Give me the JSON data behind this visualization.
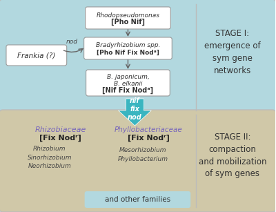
{
  "bg_top": "#b2d8df",
  "bg_bottom": "#d0c8a8",
  "bg_arrow": "#3ab5c0",
  "box_fill": "#ffffff",
  "box_edge": "#999999",
  "stage1_text": "STAGE I:\nemergence of\nsym gene\nnetworks",
  "stage2_text": "STAGE II:\ncompaction\nand mobilization\nof sym genes",
  "frankia_text": "Frankia (?)",
  "rhodops_l1": "Rhodopseudomonas",
  "rhodops_l2": "[Pho Nif]",
  "brady_l1": "Bradyrhizobium spp.",
  "brady_l2": "[Pho Nif Fix Nodᵃ]",
  "bjapon_l1": "B. japonicum,",
  "bjapon_l2": "B. elkanii",
  "bjapon_l3": "[Nif Fix Nodᵃ]",
  "arrow_label": "nif\nfix\nnod",
  "nod_arrow_label": "nod",
  "rhizo_title": "Rhizobiaceae",
  "rhizo_sub": "[Fix Nodʳ]",
  "rhizo_genera": "Rhizobium\nSinorhizobium\nNeorhizobium",
  "phyllo_title": "Phyllobacteriaceae",
  "phyllo_sub": "[Fix Nodʳ]",
  "phyllo_genera": "Mesorhizobium\nPhyllobacterium",
  "other_label": "and other families",
  "other_bg": "#b2d8df",
  "text_purple": "#7766bb",
  "text_dark": "#333333",
  "divider_color": "#bbbbbb",
  "figsize": [
    4.0,
    3.07
  ],
  "dpi": 100
}
